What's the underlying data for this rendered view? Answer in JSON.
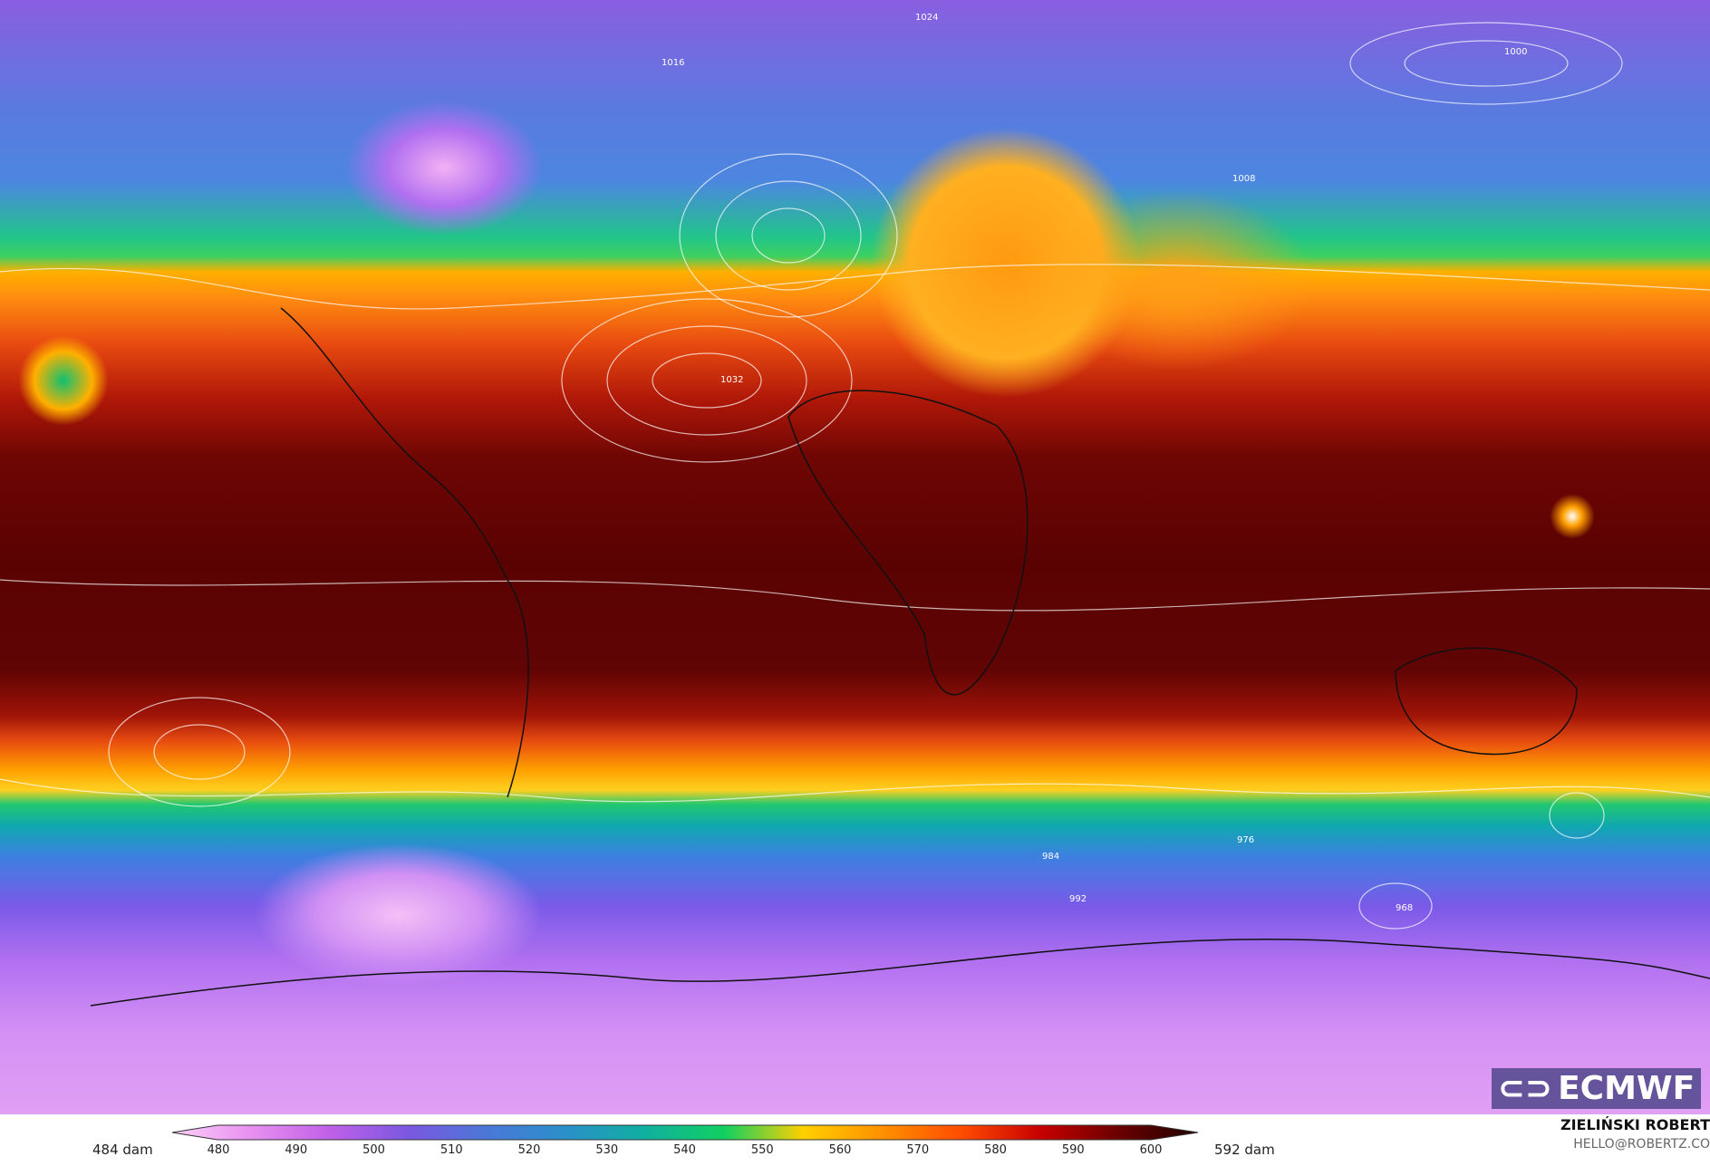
{
  "map": {
    "isobar_labels": [
      "1024",
      "1016",
      "1008",
      "1000",
      "992",
      "984",
      "976",
      "1032",
      "968"
    ],
    "logo_text": "ECMWF"
  },
  "colorbar": {
    "min_label": "484 dam",
    "max_label": "592 dam",
    "ticks": [
      "480",
      "490",
      "500",
      "510",
      "520",
      "530",
      "540",
      "550",
      "560",
      "570",
      "580",
      "590",
      "600"
    ],
    "colors": [
      "#fcd0f8",
      "#e890f0",
      "#c060e8",
      "#7a58e0",
      "#4a78d8",
      "#2a90c8",
      "#10b0a0",
      "#10d060",
      "#ffd000",
      "#ff9000",
      "#ff4c00",
      "#c80000",
      "#6a0000",
      "#200000"
    ]
  },
  "credit": {
    "name": "ZIELIŃSKI ROBERT",
    "email": "HELLO@ROBERTZ.CO"
  }
}
